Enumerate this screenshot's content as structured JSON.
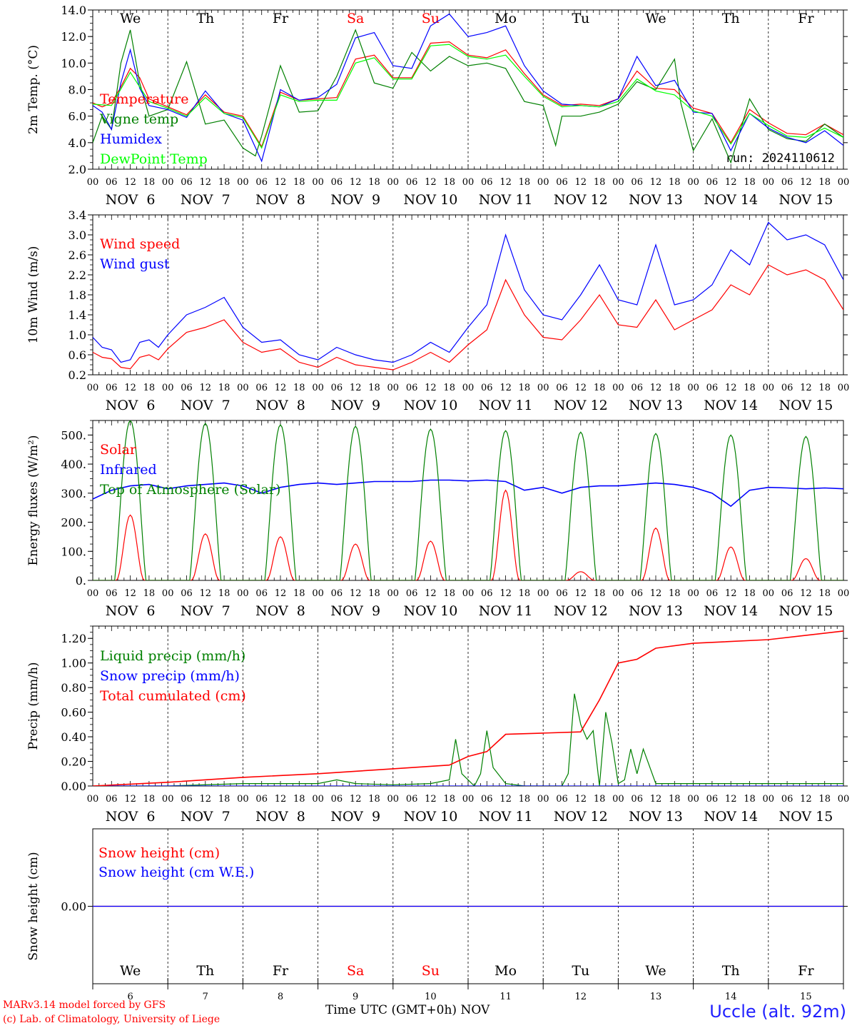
{
  "page": {
    "credit_line1": "MARv3.14 model forced by GFS",
    "credit_line2": "(c) Lab. of Climatology, University of Liege",
    "xlabel": "Time UTC (GMT+0h) NOV",
    "station": "Uccle (alt. 92m)"
  },
  "chart_data": [
    {
      "type": "line",
      "ylabel": "2m Temp. (°C)",
      "ylim": [
        2.0,
        14.0
      ],
      "yticks": [
        "2.0",
        "4.0",
        "6.0",
        "8.0",
        "10.0",
        "12.0",
        "14.0"
      ],
      "run_label": "run: 2024110612",
      "weekdays": [
        "We",
        "Th",
        "Fr",
        "Sa",
        "Su",
        "Mo",
        "Tu",
        "We",
        "Th",
        "Fr"
      ],
      "weekend_color": "#ff0000",
      "hour_ticks": [
        "00",
        "06",
        "12",
        "18"
      ],
      "date_labels": [
        "NOV  6",
        "NOV  7",
        "NOV  8",
        "NOV  9",
        "NOV 10",
        "NOV 11",
        "NOV 12",
        "NOV 13",
        "NOV 14",
        "NOV 15"
      ],
      "x_unit": "hours since NOV 6 00 UTC",
      "series": [
        {
          "name": "Temperature",
          "color": "#ff0000",
          "x": [
            0,
            3,
            6,
            9,
            12,
            15,
            18,
            24,
            30,
            36,
            42,
            48,
            54,
            60,
            66,
            72,
            78,
            84,
            90,
            96,
            102,
            108,
            114,
            120,
            126,
            132,
            138,
            144,
            150,
            156,
            162,
            168,
            174,
            180,
            186,
            192,
            198,
            204,
            210,
            216,
            222,
            228,
            234,
            240
          ],
          "y": [
            7.0,
            6.7,
            7.0,
            8.2,
            9.6,
            8.9,
            7.3,
            6.7,
            6.1,
            7.6,
            6.3,
            6.0,
            3.7,
            7.8,
            7.2,
            7.3,
            7.4,
            10.3,
            10.6,
            8.9,
            8.9,
            11.5,
            11.6,
            10.6,
            10.4,
            11.0,
            9.2,
            7.6,
            6.8,
            6.9,
            6.8,
            7.3,
            9.4,
            8.1,
            8.0,
            6.6,
            6.2,
            4.0,
            6.5,
            5.5,
            4.7,
            4.6,
            5.4,
            4.6
          ]
        },
        {
          "name": "Vigne temp",
          "color": "#008000",
          "x": [
            0,
            3,
            6,
            9,
            12,
            15,
            18,
            24,
            30,
            36,
            42,
            48,
            52,
            54,
            60,
            66,
            72,
            78,
            84,
            90,
            96,
            102,
            108,
            114,
            120,
            126,
            132,
            138,
            144,
            148,
            150,
            156,
            162,
            168,
            174,
            180,
            186,
            188,
            192,
            198,
            204,
            210,
            216,
            222,
            228,
            234,
            240
          ],
          "y": [
            4.0,
            6.0,
            5.0,
            10.0,
            12.5,
            8.5,
            6.0,
            6.5,
            10.1,
            5.4,
            5.7,
            3.6,
            3.0,
            4.5,
            9.8,
            6.3,
            6.4,
            9.0,
            12.5,
            8.5,
            8.1,
            10.8,
            9.4,
            10.5,
            9.8,
            10.0,
            9.6,
            7.1,
            6.8,
            3.8,
            6.0,
            6.0,
            6.3,
            6.9,
            8.6,
            8.0,
            10.3,
            7.0,
            3.4,
            5.8,
            2.5,
            7.3,
            5.0,
            4.3,
            4.1,
            5.4,
            4.4
          ]
        },
        {
          "name": "Humidex",
          "color": "#0000ff",
          "x": [
            0,
            3,
            6,
            9,
            12,
            15,
            18,
            24,
            30,
            36,
            42,
            48,
            54,
            60,
            66,
            72,
            78,
            84,
            90,
            96,
            102,
            108,
            114,
            120,
            126,
            132,
            138,
            144,
            150,
            156,
            162,
            168,
            174,
            180,
            186,
            192,
            198,
            204,
            210,
            216,
            222,
            228,
            234,
            240
          ],
          "y": [
            6.8,
            6.3,
            5.0,
            8.5,
            11.0,
            8.1,
            6.8,
            6.5,
            5.9,
            7.9,
            6.2,
            5.7,
            2.6,
            8.0,
            7.2,
            7.4,
            8.4,
            11.9,
            12.3,
            9.8,
            9.6,
            12.8,
            13.7,
            12.0,
            12.3,
            12.8,
            9.8,
            7.9,
            6.9,
            6.8,
            6.7,
            7.3,
            10.5,
            8.3,
            8.7,
            6.3,
            6.2,
            3.4,
            6.2,
            5.1,
            4.4,
            4.0,
            4.9,
            3.8
          ]
        },
        {
          "name": "DewPoint Temp",
          "color": "#00ff00",
          "x": [
            0,
            6,
            12,
            18,
            24,
            30,
            36,
            42,
            48,
            54,
            60,
            66,
            72,
            78,
            84,
            90,
            96,
            102,
            108,
            114,
            120,
            126,
            132,
            138,
            144,
            150,
            156,
            162,
            168,
            174,
            180,
            186,
            192,
            198,
            204,
            210,
            216,
            222,
            228,
            234,
            240
          ],
          "y": [
            6.9,
            6.8,
            9.3,
            7.1,
            6.6,
            6.0,
            7.4,
            6.2,
            5.9,
            3.6,
            7.6,
            7.1,
            7.2,
            7.2,
            10.0,
            10.4,
            8.8,
            8.8,
            11.3,
            11.4,
            10.5,
            10.3,
            10.6,
            9.0,
            7.5,
            6.7,
            6.8,
            6.7,
            7.1,
            8.8,
            7.9,
            7.6,
            6.4,
            6.0,
            3.9,
            6.2,
            5.3,
            4.5,
            4.4,
            5.1,
            4.4
          ]
        }
      ]
    },
    {
      "type": "line",
      "ylabel": "10m Wind (m/s)",
      "ylim": [
        0.2,
        3.4
      ],
      "yticks": [
        "0.2",
        "0.6",
        "1.0",
        "1.4",
        "1.8",
        "2.2",
        "2.6",
        "3.0",
        "3.4"
      ],
      "hour_ticks": [
        "00",
        "06",
        "12",
        "18"
      ],
      "date_labels": [
        "NOV  6",
        "NOV  7",
        "NOV  8",
        "NOV  9",
        "NOV 10",
        "NOV 11",
        "NOV 12",
        "NOV 13",
        "NOV 14",
        "NOV 15"
      ],
      "x_unit": "hours since NOV 6 00 UTC",
      "series": [
        {
          "name": "Wind speed",
          "color": "#ff0000",
          "x": [
            0,
            3,
            6,
            9,
            12,
            15,
            18,
            21,
            24,
            30,
            36,
            42,
            48,
            54,
            60,
            66,
            72,
            78,
            84,
            90,
            96,
            102,
            108,
            114,
            120,
            126,
            132,
            138,
            144,
            150,
            156,
            162,
            168,
            174,
            180,
            186,
            192,
            198,
            204,
            210,
            216,
            222,
            228,
            234,
            240
          ],
          "y": [
            0.65,
            0.55,
            0.52,
            0.35,
            0.32,
            0.55,
            0.6,
            0.5,
            0.72,
            1.05,
            1.15,
            1.3,
            0.85,
            0.65,
            0.72,
            0.45,
            0.35,
            0.55,
            0.4,
            0.35,
            0.3,
            0.45,
            0.65,
            0.45,
            0.8,
            1.1,
            2.1,
            1.4,
            0.95,
            0.9,
            1.3,
            1.8,
            1.2,
            1.15,
            1.7,
            1.1,
            1.3,
            1.5,
            2.0,
            1.8,
            2.4,
            2.2,
            2.3,
            2.1,
            1.5
          ]
        },
        {
          "name": "Wind gust",
          "color": "#0000ff",
          "x": [
            0,
            3,
            6,
            9,
            12,
            15,
            18,
            21,
            24,
            30,
            36,
            42,
            48,
            54,
            60,
            66,
            72,
            78,
            84,
            90,
            96,
            102,
            108,
            114,
            120,
            126,
            132,
            138,
            144,
            150,
            156,
            162,
            168,
            174,
            180,
            186,
            192,
            198,
            204,
            210,
            216,
            222,
            228,
            234,
            240
          ],
          "y": [
            0.95,
            0.75,
            0.7,
            0.45,
            0.5,
            0.85,
            0.9,
            0.75,
            1.0,
            1.4,
            1.55,
            1.75,
            1.15,
            0.85,
            0.9,
            0.6,
            0.5,
            0.75,
            0.6,
            0.5,
            0.45,
            0.6,
            0.85,
            0.65,
            1.15,
            1.6,
            3.0,
            1.9,
            1.4,
            1.3,
            1.8,
            2.4,
            1.7,
            1.6,
            2.8,
            1.6,
            1.7,
            2.0,
            2.7,
            2.4,
            3.25,
            2.9,
            3.0,
            2.8,
            2.1
          ]
        }
      ]
    },
    {
      "type": "line",
      "ylabel": "Energy fluxes (W/m²)",
      "ylim": [
        0,
        550
      ],
      "yticks": [
        "0.",
        "100.",
        "200.",
        "300.",
        "400.",
        "500."
      ],
      "hour_ticks": [
        "00",
        "06",
        "12",
        "18"
      ],
      "date_labels": [
        "NOV  6",
        "NOV  7",
        "NOV  8",
        "NOV  9",
        "NOV 10",
        "NOV 11",
        "NOV 12",
        "NOV 13",
        "NOV 14",
        "NOV 15"
      ],
      "x_unit": "hours since NOV 6 00 UTC",
      "daily_peaks": {
        "solar": [
          225,
          160,
          150,
          125,
          135,
          310,
          30,
          180,
          115,
          75
        ],
        "top_of_atmosphere": [
          550,
          540,
          535,
          530,
          520,
          515,
          510,
          505,
          500,
          495
        ]
      },
      "series": [
        {
          "name": "Solar",
          "color": "#ff0000"
        },
        {
          "name": "Infrared",
          "color": "#0000ff",
          "x": [
            0,
            6,
            12,
            18,
            24,
            30,
            36,
            42,
            48,
            54,
            60,
            66,
            72,
            78,
            84,
            90,
            96,
            102,
            108,
            114,
            120,
            126,
            132,
            138,
            144,
            150,
            156,
            162,
            168,
            174,
            180,
            186,
            192,
            198,
            204,
            210,
            216,
            222,
            228,
            234,
            240
          ],
          "y": [
            280,
            310,
            325,
            330,
            315,
            325,
            330,
            335,
            325,
            300,
            320,
            330,
            335,
            330,
            335,
            340,
            340,
            340,
            345,
            345,
            342,
            345,
            340,
            310,
            320,
            300,
            320,
            325,
            325,
            330,
            335,
            330,
            320,
            300,
            255,
            310,
            320,
            318,
            315,
            318,
            315
          ]
        },
        {
          "name": "Top of Atmosphere (Solar)",
          "color": "#008000"
        }
      ]
    },
    {
      "type": "line",
      "ylabel": "Precip (mm/h)",
      "ylim": [
        0,
        1.3
      ],
      "yticks": [
        "0.00",
        "0.20",
        "0.40",
        "0.60",
        "0.80",
        "1.00",
        "1.20"
      ],
      "hour_ticks": [
        "00",
        "06",
        "12",
        "18"
      ],
      "date_labels": [
        "NOV  6",
        "NOV  7",
        "NOV  8",
        "NOV  9",
        "NOV 10",
        "NOV 11",
        "NOV 12",
        "NOV 13",
        "NOV 14",
        "NOV 15"
      ],
      "x_unit": "hours since NOV 6 00 UTC",
      "series": [
        {
          "name": "Liquid precip (mm/h)",
          "color": "#008000",
          "x": [
            0,
            24,
            48,
            72,
            78,
            84,
            96,
            108,
            114,
            116,
            118,
            120,
            122,
            124,
            126,
            128,
            132,
            138,
            144,
            150,
            152,
            154,
            156,
            158,
            160,
            162,
            164,
            166,
            168,
            170,
            172,
            174,
            176,
            180,
            192,
            216,
            240
          ],
          "y": [
            0.0,
            0.0,
            0.02,
            0.02,
            0.05,
            0.02,
            0.01,
            0.02,
            0.05,
            0.38,
            0.1,
            0.05,
            0.0,
            0.1,
            0.45,
            0.15,
            0.02,
            0.0,
            0.0,
            0.0,
            0.1,
            0.75,
            0.5,
            0.38,
            0.45,
            0.0,
            0.6,
            0.35,
            0.02,
            0.05,
            0.3,
            0.1,
            0.3,
            0.02,
            0.02,
            0.02,
            0.02
          ]
        },
        {
          "name": "Snow precip (mm/h)",
          "color": "#0000ff",
          "x": [
            0,
            240
          ],
          "y": [
            0.0,
            0.0
          ]
        },
        {
          "name": "Total cumulated (cm)",
          "color": "#ff0000",
          "x": [
            0,
            24,
            48,
            72,
            96,
            108,
            114,
            120,
            126,
            132,
            144,
            156,
            162,
            168,
            174,
            180,
            192,
            216,
            240
          ],
          "y": [
            0.0,
            0.03,
            0.07,
            0.1,
            0.14,
            0.16,
            0.17,
            0.24,
            0.28,
            0.42,
            0.43,
            0.44,
            0.7,
            1.0,
            1.03,
            1.12,
            1.16,
            1.19,
            1.26
          ]
        }
      ]
    },
    {
      "type": "line",
      "ylabel": "Snow height (cm)",
      "ylim": [
        -0.1,
        0.1
      ],
      "yticks": [
        "0.00"
      ],
      "weekdays": [
        "We",
        "Th",
        "Fr",
        "Sa",
        "Su",
        "Mo",
        "Tu",
        "We",
        "Th",
        "Fr"
      ],
      "weekend_color": "#ff0000",
      "day_numbers": [
        "6",
        "7",
        "8",
        "9",
        "10",
        "11",
        "12",
        "13",
        "14",
        "15"
      ],
      "x_unit": "hours since NOV 6 00 UTC",
      "series": [
        {
          "name": "Snow height (cm)",
          "color": "#ff0000",
          "x": [
            0,
            240
          ],
          "y": [
            0.0,
            0.0
          ]
        },
        {
          "name": "Snow height (cm W.E.)",
          "color": "#0000ff",
          "x": [
            0,
            240
          ],
          "y": [
            0.0,
            0.0
          ]
        }
      ]
    }
  ]
}
